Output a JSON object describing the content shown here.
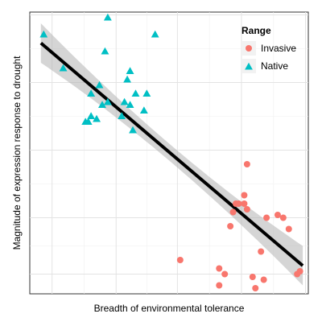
{
  "chart_data": {
    "type": "scatter",
    "title": "",
    "xlabel": "Breadth of environmental tolerance",
    "ylabel": "Magnitude of expression response to drought",
    "show_tick_labels": false,
    "grid": true,
    "xlim": [
      0,
      100
    ],
    "ylim": [
      0,
      100
    ],
    "x_gridlines": [
      8,
      31,
      53,
      76,
      99
    ],
    "y_gridlines": [
      7,
      27,
      51,
      75,
      99
    ],
    "legend": {
      "title": "Range",
      "position": "top-right"
    },
    "trend": {
      "type": "linear-fit",
      "start": [
        4,
        89
      ],
      "end": [
        98,
        10
      ],
      "band_halfwidth_ends": 7,
      "band_halfwidth_center": 3,
      "line_color": "#000000",
      "band_color": "#b3b3b3"
    },
    "series": [
      {
        "name": "Invasive",
        "marker": "circle",
        "color": "#F8766D",
        "points": [
          [
            54,
            12
          ],
          [
            68,
            9
          ],
          [
            68,
            3
          ],
          [
            70,
            7
          ],
          [
            72,
            24
          ],
          [
            73,
            29
          ],
          [
            74,
            32
          ],
          [
            75,
            32
          ],
          [
            77,
            32
          ],
          [
            77,
            35
          ],
          [
            78,
            30
          ],
          [
            78,
            46
          ],
          [
            80,
            6
          ],
          [
            81,
            2
          ],
          [
            83,
            15
          ],
          [
            84,
            5
          ],
          [
            85,
            27
          ],
          [
            89,
            28
          ],
          [
            91,
            27
          ],
          [
            93,
            23
          ],
          [
            96,
            7
          ],
          [
            97,
            8
          ]
        ]
      },
      {
        "name": "Native",
        "marker": "triangle",
        "color": "#00BFC4",
        "points": [
          [
            5,
            92
          ],
          [
            12,
            80
          ],
          [
            20,
            61
          ],
          [
            21,
            61
          ],
          [
            22,
            63
          ],
          [
            22,
            71
          ],
          [
            24,
            62
          ],
          [
            25,
            74
          ],
          [
            26,
            67
          ],
          [
            27,
            86
          ],
          [
            28,
            68
          ],
          [
            28,
            98
          ],
          [
            33,
            63
          ],
          [
            34,
            68
          ],
          [
            35,
            76
          ],
          [
            36,
            79
          ],
          [
            36,
            67
          ],
          [
            37,
            58
          ],
          [
            38,
            71
          ],
          [
            41,
            65
          ],
          [
            42,
            71
          ],
          [
            45,
            92
          ]
        ]
      }
    ]
  }
}
